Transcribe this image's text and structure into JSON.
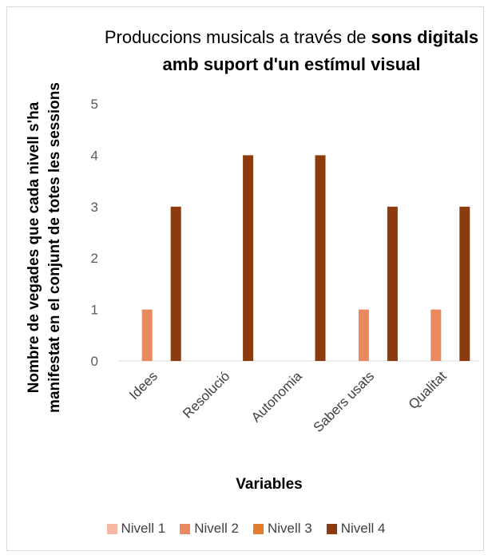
{
  "chart_data": {
    "type": "bar",
    "title_parts": [
      {
        "text": "Produccions musicals  a través de ",
        "bold": false
      },
      {
        "text": "sons digitals amb suport d'un estímul visual",
        "bold": true
      }
    ],
    "categories": [
      "Idees",
      "Resolució",
      "Autonomia",
      "Sabers usats",
      "Qualitat"
    ],
    "series": [
      {
        "name": "Nivell 1",
        "color": "#f4b8a4",
        "values": [
          0,
          0,
          0,
          0,
          0
        ]
      },
      {
        "name": "Nivell 2",
        "color": "#e9895f",
        "values": [
          1,
          0,
          0,
          1,
          1
        ]
      },
      {
        "name": "Nivell 3",
        "color": "#e57c2b",
        "values": [
          0,
          0,
          0,
          0,
          0
        ]
      },
      {
        "name": "Nivell 4",
        "color": "#8b3b0e",
        "values": [
          3,
          4,
          4,
          3,
          3
        ]
      }
    ],
    "xlabel": "Variables",
    "ylabel_lines": [
      "Nombre de vegades que cada nivell s'ha",
      "manifestat en el conjunt de totes les sessions"
    ],
    "ylim": [
      0,
      5
    ],
    "yticks": [
      0,
      1,
      2,
      3,
      4,
      5
    ],
    "grid": false,
    "legend_position": "bottom"
  }
}
